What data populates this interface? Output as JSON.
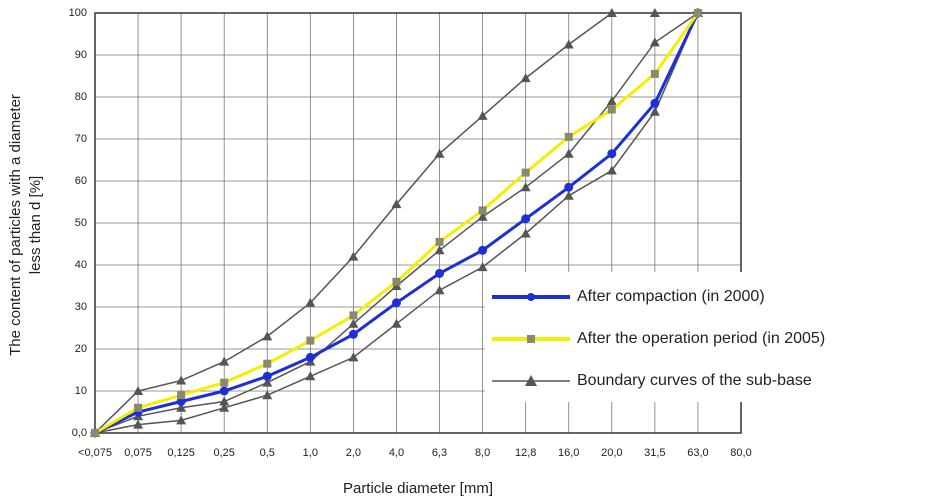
{
  "chart_data": {
    "type": "line",
    "x_label": "Particle diameter [mm]",
    "y_label": [
      "The content of particles with a diameter",
      "less than d [%]"
    ],
    "categories": [
      "<0,075",
      "0,075",
      "0,125",
      "0,25",
      "0,5",
      "1,0",
      "2,0",
      "4,0",
      "6,3",
      "8,0",
      "12,8",
      "16,0",
      "20,0",
      "31,5",
      "63,0",
      "80,0"
    ],
    "ylim": [
      0,
      100
    ],
    "yticks": [
      {
        "value": 0,
        "label": "0,0"
      },
      10,
      20,
      30,
      40,
      50,
      60,
      70,
      80,
      90,
      100
    ],
    "grid": true,
    "legend": "lower right",
    "series": [
      {
        "name": "After compaction (in 2000)",
        "color": "#1f2fd6",
        "marker": "circle",
        "values": [
          0,
          5,
          7.5,
          10,
          13.5,
          18,
          23.5,
          31,
          38,
          43.5,
          51,
          58.5,
          66.5,
          78.5,
          100,
          null
        ]
      },
      {
        "name": "After the operation period (in 2005)",
        "color": "#f5ee00",
        "marker": "square",
        "values": [
          0,
          6,
          9,
          12,
          16.5,
          22,
          28,
          36,
          45.5,
          53,
          62,
          70.5,
          77,
          85.5,
          100,
          null
        ]
      },
      {
        "name": "Boundary curves of the sub-base",
        "color": "#555555",
        "marker": "triangle",
        "curves": [
          [
            0,
            10,
            12.5,
            17,
            23,
            31,
            42,
            54.5,
            66.5,
            75.5,
            84.5,
            92.5,
            100,
            100,
            100,
            null
          ],
          [
            0,
            4,
            6,
            7.5,
            12,
            17,
            26,
            35,
            43.5,
            51.5,
            58.5,
            66.5,
            79,
            93,
            100,
            null
          ],
          [
            0,
            2,
            3,
            6,
            9,
            13.5,
            18,
            26,
            34,
            39.5,
            47.5,
            56.5,
            62.5,
            76.5,
            100,
            null
          ]
        ]
      }
    ]
  }
}
